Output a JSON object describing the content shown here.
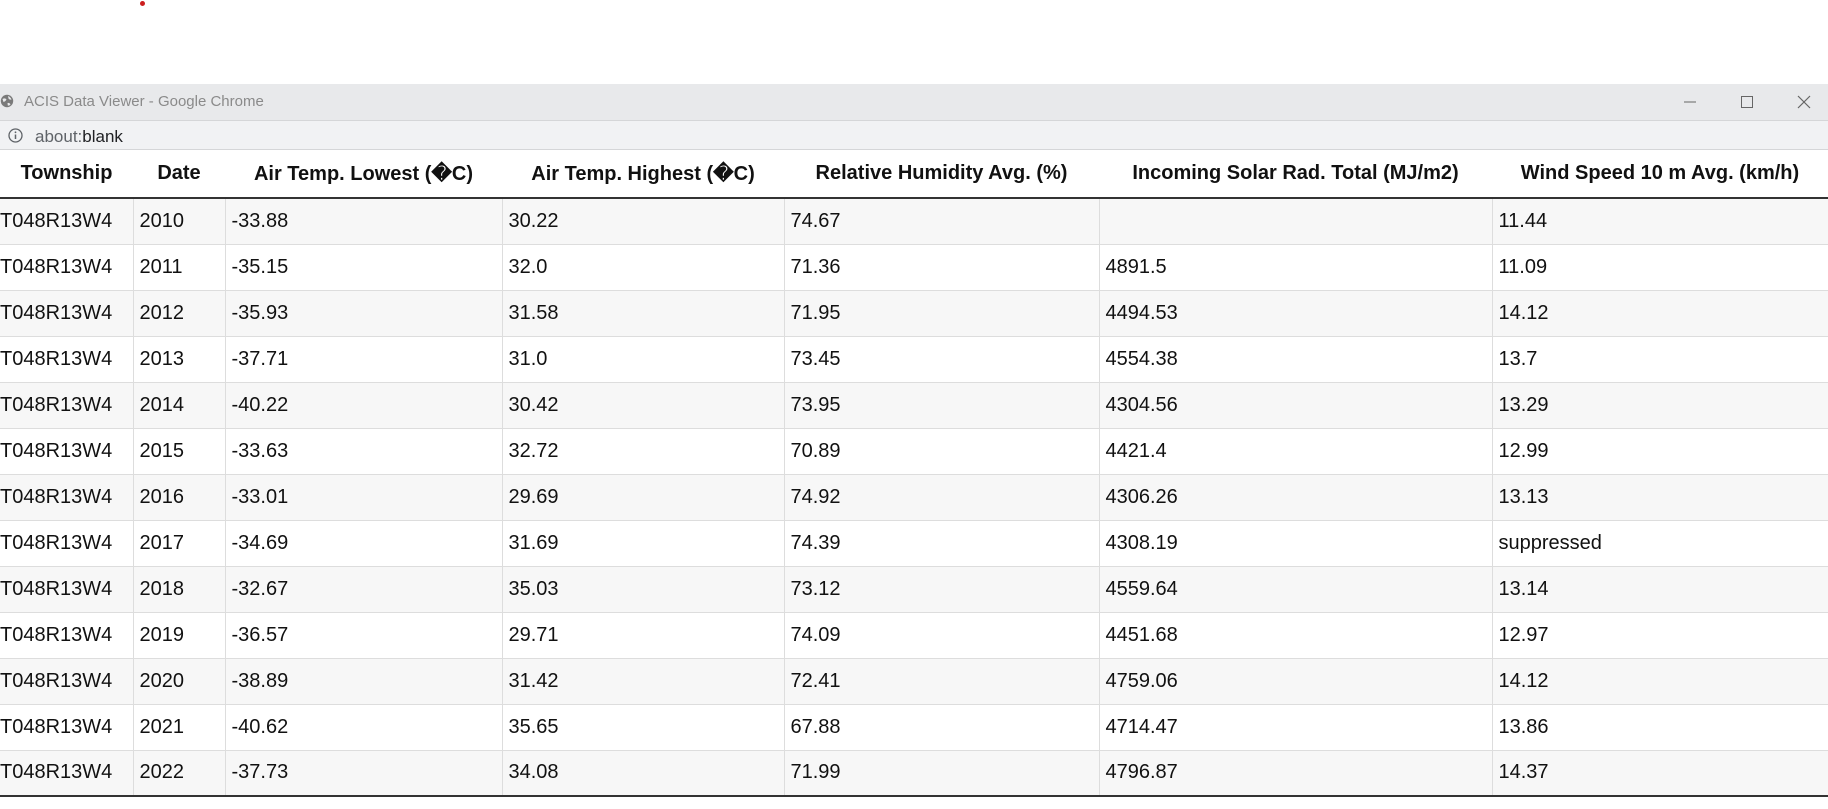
{
  "window": {
    "title": "ACIS Data Viewer - Google Chrome",
    "icon": "globe-icon"
  },
  "address_bar": {
    "icon": "info-icon",
    "scheme": "about:",
    "path": "blank"
  },
  "table": {
    "headers": [
      "Township",
      "Date",
      "Air Temp. Lowest (�C)",
      "Air Temp. Highest (�C)",
      "Relative Humidity Avg. (%)",
      "Incoming Solar Rad. Total (MJ/m2)",
      "Wind Speed 10 m Avg. (km/h)"
    ],
    "rows": [
      [
        "T048R13W4",
        "2010",
        "-33.88",
        "30.22",
        "74.67",
        "",
        "11.44"
      ],
      [
        "T048R13W4",
        "2011",
        "-35.15",
        "32.0",
        "71.36",
        "4891.5",
        "11.09"
      ],
      [
        "T048R13W4",
        "2012",
        "-35.93",
        "31.58",
        "71.95",
        "4494.53",
        "14.12"
      ],
      [
        "T048R13W4",
        "2013",
        "-37.71",
        "31.0",
        "73.45",
        "4554.38",
        "13.7"
      ],
      [
        "T048R13W4",
        "2014",
        "-40.22",
        "30.42",
        "73.95",
        "4304.56",
        "13.29"
      ],
      [
        "T048R13W4",
        "2015",
        "-33.63",
        "32.72",
        "70.89",
        "4421.4",
        "12.99"
      ],
      [
        "T048R13W4",
        "2016",
        "-33.01",
        "29.69",
        "74.92",
        "4306.26",
        "13.13"
      ],
      [
        "T048R13W4",
        "2017",
        "-34.69",
        "31.69",
        "74.39",
        "4308.19",
        "suppressed"
      ],
      [
        "T048R13W4",
        "2018",
        "-32.67",
        "35.03",
        "73.12",
        "4559.64",
        "13.14"
      ],
      [
        "T048R13W4",
        "2019",
        "-36.57",
        "29.71",
        "74.09",
        "4451.68",
        "12.97"
      ],
      [
        "T048R13W4",
        "2020",
        "-38.89",
        "31.42",
        "72.41",
        "4759.06",
        "14.12"
      ],
      [
        "T048R13W4",
        "2021",
        "-40.62",
        "35.65",
        "67.88",
        "4714.47",
        "13.86"
      ],
      [
        "T048R13W4",
        "2022",
        "-37.73",
        "34.08",
        "71.99",
        "4796.87",
        "14.37"
      ]
    ]
  }
}
